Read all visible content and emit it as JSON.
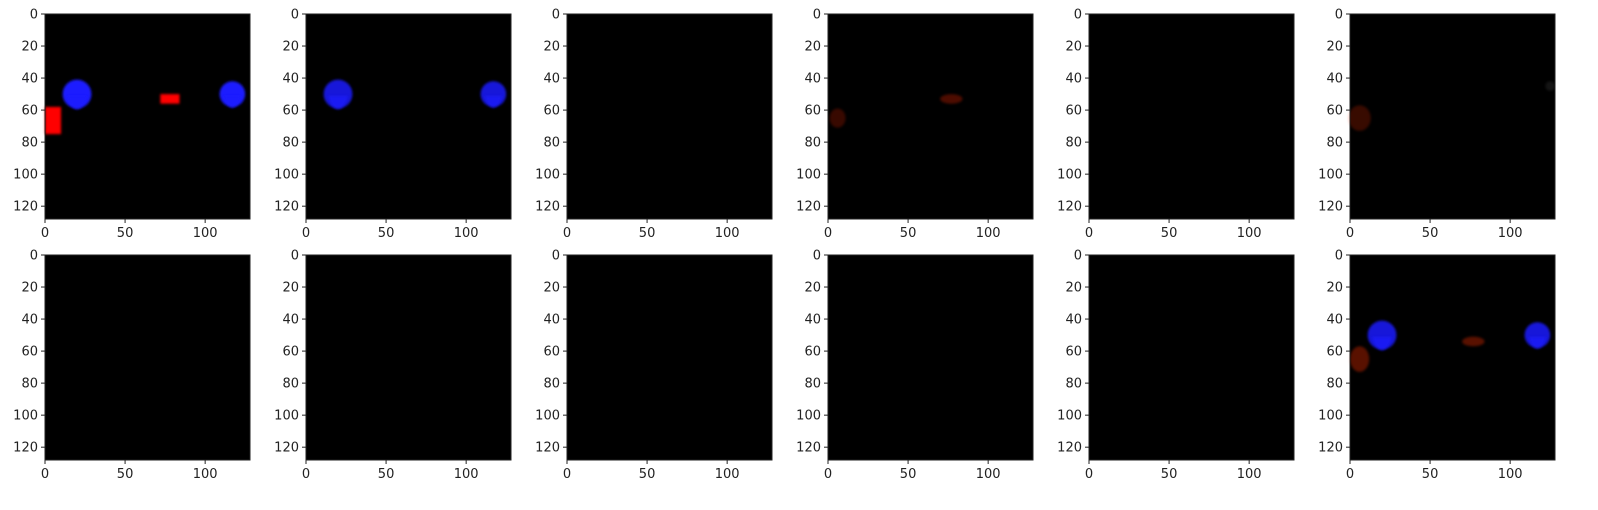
{
  "chart_data": {
    "type": "image-grid",
    "layout": {
      "rows": 2,
      "cols": 6
    },
    "x_ticks": [
      0,
      50,
      100
    ],
    "y_ticks": [
      0,
      20,
      40,
      60,
      80,
      100,
      120
    ],
    "extent": {
      "xlim": [
        0,
        128
      ],
      "ylim": [
        128,
        0
      ]
    },
    "colors": {
      "background": "#000000",
      "axis": "#222222",
      "blue": "#1a1aff",
      "red": "#ff0000"
    },
    "panels": [
      {
        "index": 1,
        "blobs": [
          {
            "color": "#1a1aff",
            "opacity": 1.0,
            "cx": 20,
            "cy": 50,
            "rx": 9,
            "ry": 9,
            "tail": 1
          },
          {
            "color": "#1a1aff",
            "opacity": 1.0,
            "cx": 117,
            "cy": 50,
            "rx": 8,
            "ry": 8,
            "tail": 1
          },
          {
            "color": "#ff0000",
            "opacity": 1.0,
            "shape": "rect",
            "x0": 72,
            "y0": 50,
            "x1": 84,
            "y1": 56
          },
          {
            "color": "#ff0000",
            "opacity": 1.0,
            "shape": "rect",
            "x0": 0,
            "y0": 58,
            "x1": 10,
            "y1": 75
          }
        ]
      },
      {
        "index": 2,
        "blobs": [
          {
            "color": "#1a1aff",
            "opacity": 0.85,
            "cx": 20,
            "cy": 50,
            "rx": 9,
            "ry": 9,
            "tail": 1
          },
          {
            "color": "#1a1aff",
            "opacity": 0.85,
            "cx": 117,
            "cy": 50,
            "rx": 8,
            "ry": 8,
            "tail": 1
          }
        ]
      },
      {
        "index": 3,
        "blobs": []
      },
      {
        "index": 4,
        "blobs": [
          {
            "color": "#ff2a00",
            "opacity": 0.3,
            "cx": 77,
            "cy": 53,
            "rx": 7,
            "ry": 3
          },
          {
            "color": "#ff2a00",
            "opacity": 0.22,
            "cx": 6,
            "cy": 65,
            "rx": 5,
            "ry": 6
          }
        ]
      },
      {
        "index": 5,
        "blobs": []
      },
      {
        "index": 6,
        "blobs": [
          {
            "color": "#ff3300",
            "opacity": 0.22,
            "cx": 6,
            "cy": 65,
            "rx": 7,
            "ry": 8
          },
          {
            "color": "#ffffff",
            "opacity": 0.08,
            "cx": 125,
            "cy": 45,
            "rx": 3,
            "ry": 3
          }
        ]
      },
      {
        "index": 7,
        "blobs": []
      },
      {
        "index": 8,
        "blobs": []
      },
      {
        "index": 9,
        "blobs": []
      },
      {
        "index": 10,
        "blobs": []
      },
      {
        "index": 11,
        "blobs": []
      },
      {
        "index": 12,
        "blobs": [
          {
            "color": "#1a1aff",
            "opacity": 0.85,
            "cx": 20,
            "cy": 50,
            "rx": 9,
            "ry": 9,
            "tail": 1
          },
          {
            "color": "#1a1aff",
            "opacity": 0.85,
            "cx": 117,
            "cy": 50,
            "rx": 8,
            "ry": 8,
            "tail": 1
          },
          {
            "color": "#ff3300",
            "opacity": 0.35,
            "cx": 77,
            "cy": 54,
            "rx": 7,
            "ry": 3
          },
          {
            "color": "#ff3300",
            "opacity": 0.35,
            "cx": 6,
            "cy": 65,
            "rx": 6,
            "ry": 8
          }
        ]
      }
    ]
  }
}
